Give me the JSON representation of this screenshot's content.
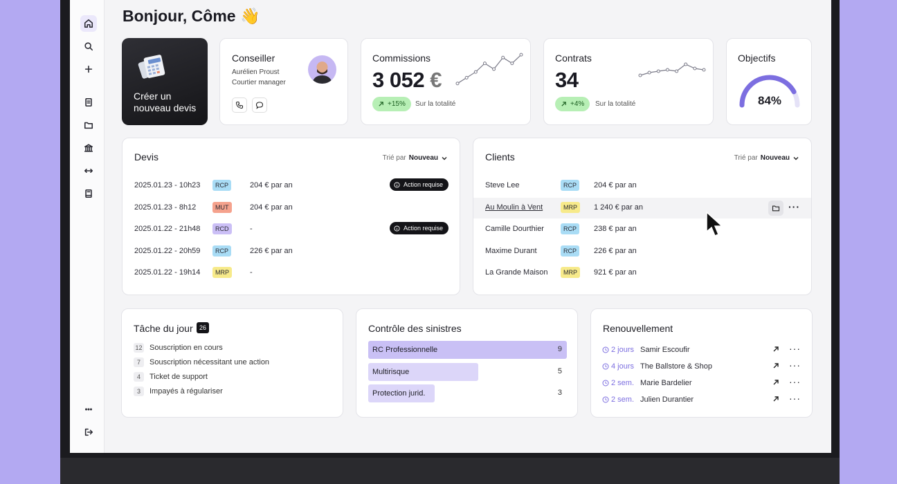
{
  "greeting": "Bonjour, Côme 👋",
  "create_quote": {
    "label_line1": "Créer un",
    "label_line2": "nouveau devis"
  },
  "advisor": {
    "title": "Conseiller",
    "name": "Aurélien Proust",
    "role": "Courtier manager"
  },
  "commissions": {
    "title": "Commissions",
    "value": "3 052",
    "unit": "€",
    "change": "+15%",
    "note": "Sur la totalité"
  },
  "contracts": {
    "title": "Contrats",
    "value": "34",
    "change": "+4%",
    "note": "Sur la totalité"
  },
  "objectives": {
    "title": "Objectifs",
    "percent_label": "84%",
    "progress": 0.84
  },
  "quotes": {
    "title": "Devis",
    "sort_prefix": "Trié par",
    "sort_value": "Nouveau",
    "rows": [
      {
        "date": "2025.01.23 - 10h23",
        "tag": "RCP",
        "amount": "204 € par an",
        "action": "Action requise"
      },
      {
        "date": "2025.01.23 - 8h12",
        "tag": "MUT",
        "amount": "204 € par an",
        "action": ""
      },
      {
        "date": "2025.01.22 - 21h48",
        "tag": "RCD",
        "amount": "-",
        "action": "Action requise"
      },
      {
        "date": "2025.01.22 - 20h59",
        "tag": "RCP",
        "amount": "226 € par an",
        "action": ""
      },
      {
        "date": "2025.01.22 - 19h14",
        "tag": "MRP",
        "amount": "-",
        "action": ""
      }
    ]
  },
  "clients": {
    "title": "Clients",
    "sort_prefix": "Trié par",
    "sort_value": "Nouveau",
    "rows": [
      {
        "name": "Steve Lee",
        "tag": "RCP",
        "amount": "204 € par an"
      },
      {
        "name": "Au Moulin à Vent",
        "tag": "MRP",
        "amount": "1 240 € par an"
      },
      {
        "name": "Camille Dourthier",
        "tag": "RCP",
        "amount": "238 € par an"
      },
      {
        "name": "Maxime Durant",
        "tag": "RCP",
        "amount": "226 € par an"
      },
      {
        "name": "La Grande Maison",
        "tag": "MRP",
        "amount": "921 € par an"
      }
    ]
  },
  "tasks": {
    "title": "Tâche du jour",
    "count": "26",
    "items": [
      {
        "count": "12",
        "label": "Souscription en cours"
      },
      {
        "count": "7",
        "label": "Souscription nécessitant une action"
      },
      {
        "count": "4",
        "label": "Ticket de support"
      },
      {
        "count": "3",
        "label": "Impayés à régulariser"
      }
    ]
  },
  "claims": {
    "title": "Contrôle des sinistres",
    "items": [
      {
        "label": "RC Professionnelle",
        "value": "9",
        "level": 9,
        "color": "#c9c0f5"
      },
      {
        "label": "Multirisque",
        "value": "5",
        "level": 5,
        "color": "#dcd6f9"
      },
      {
        "label": "Protection jurid.",
        "value": "3",
        "level": 3,
        "color": "#dcd6f9"
      }
    ]
  },
  "renewals": {
    "title": "Renouvellement",
    "items": [
      {
        "when": "2 jours",
        "name": "Samir Escoufir"
      },
      {
        "when": "4 jours",
        "name": "The Ballstore & Shop"
      },
      {
        "when": "2 sem.",
        "name": "Marie Bardelier"
      },
      {
        "when": "2 sem.",
        "name": "Julien Durantier"
      }
    ]
  },
  "colors": {
    "accent": "#7c6ee0",
    "positive_bg": "#b7efb5",
    "dark": "#141418"
  },
  "chart_data": [
    {
      "type": "line",
      "title": "Commissions",
      "x": [
        1,
        2,
        3,
        4,
        5,
        6,
        7,
        8
      ],
      "values": [
        2,
        4,
        6,
        9,
        7,
        11,
        9,
        12
      ],
      "ylim": [
        0,
        13
      ]
    },
    {
      "type": "line",
      "title": "Contrats",
      "x": [
        1,
        2,
        3,
        4,
        5,
        6,
        7,
        8
      ],
      "values": [
        2,
        3,
        3.5,
        4,
        3.5,
        6,
        4.5,
        4
      ],
      "ylim": [
        0,
        8
      ]
    }
  ]
}
